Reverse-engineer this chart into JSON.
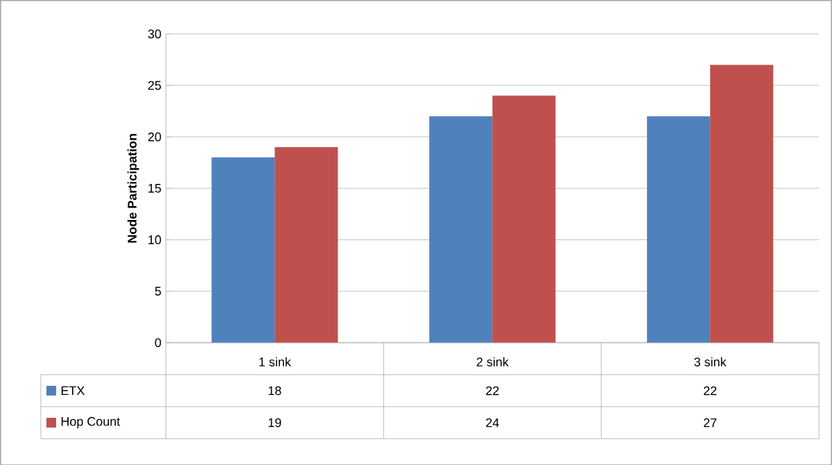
{
  "chart_data": {
    "type": "bar",
    "ylabel": "Node Participation",
    "categories": [
      "1 sink",
      "2 sink",
      "3 sink"
    ],
    "series": [
      {
        "name": "ETX",
        "color": "#4f81bd",
        "values": [
          18,
          22,
          22
        ]
      },
      {
        "name": "Hop Count",
        "color": "#c0504d",
        "values": [
          19,
          24,
          27
        ]
      }
    ],
    "ylim": [
      0,
      30
    ],
    "yticks": [
      0,
      5,
      10,
      15,
      20,
      25,
      30
    ],
    "grid": "y",
    "legend": "bottom",
    "data_labels": true
  }
}
